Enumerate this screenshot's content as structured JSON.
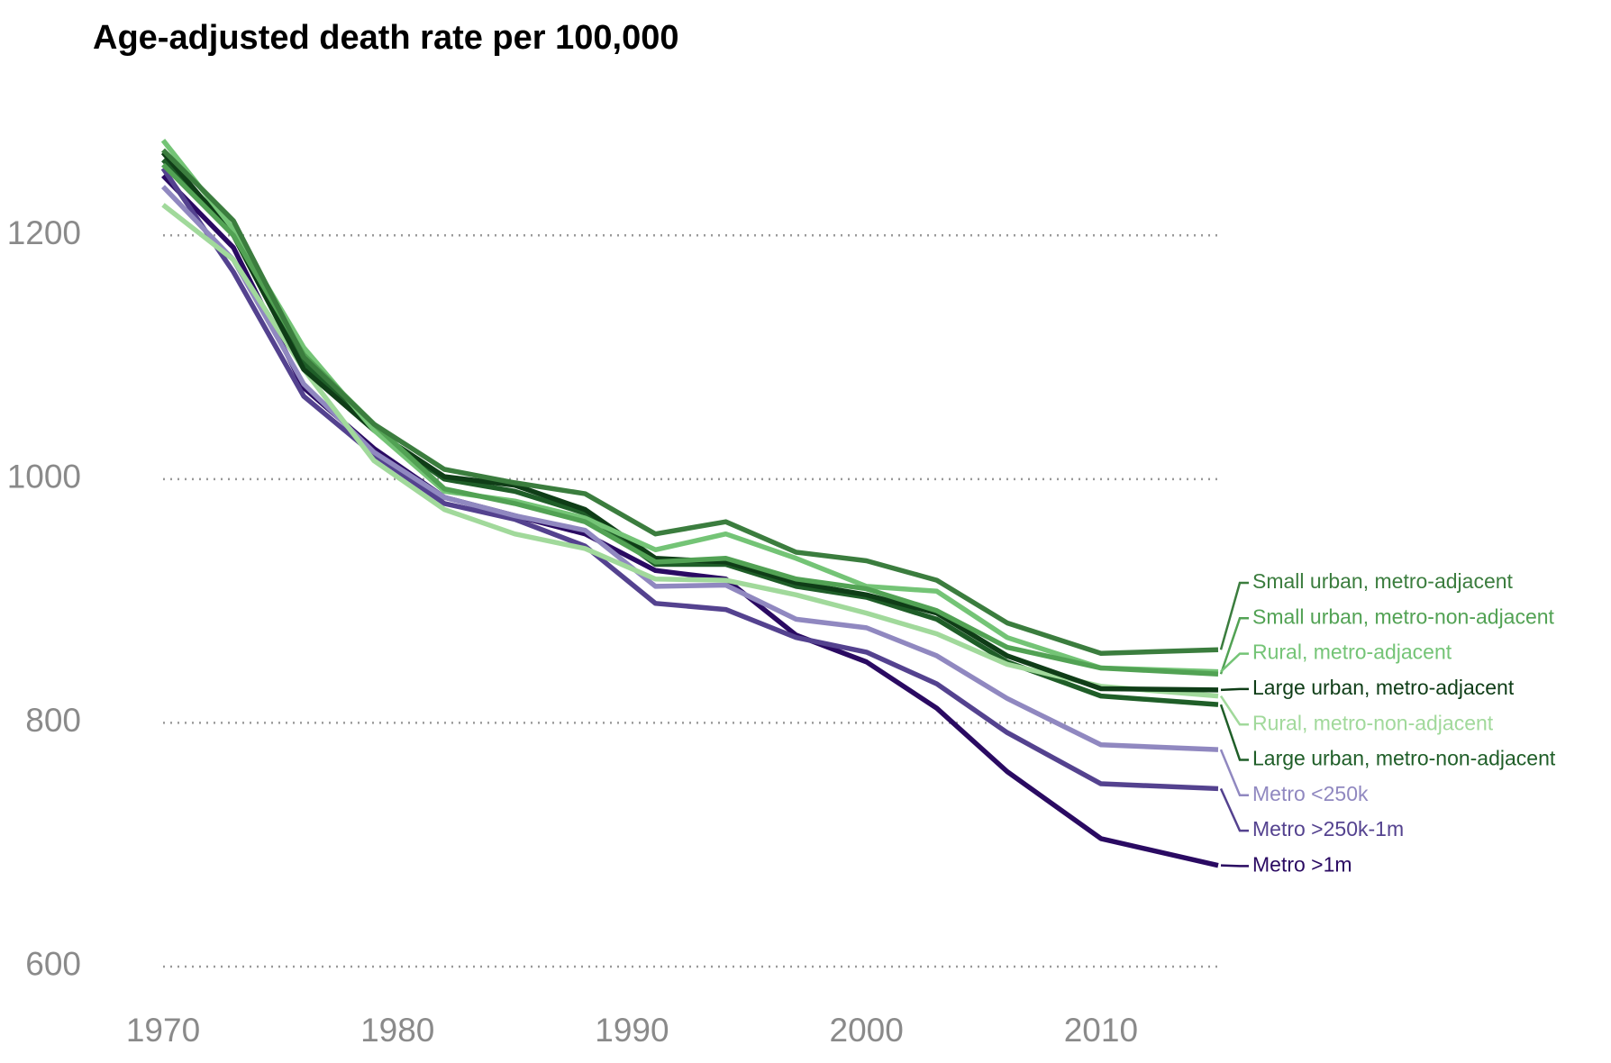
{
  "chart_data": {
    "type": "line",
    "title": "Age-adjusted death rate per 100,000",
    "x": [
      1970,
      1973,
      1976,
      1979,
      1982,
      1985,
      1988,
      1991,
      1994,
      1997,
      2000,
      2003,
      2006,
      2010,
      2015
    ],
    "xlim": [
      1970,
      2015
    ],
    "xticks": [
      1970,
      1980,
      1990,
      2000,
      2010
    ],
    "ylim": [
      580,
      1300
    ],
    "yticks": [
      600,
      800,
      1000,
      1200
    ],
    "grid": true,
    "series": [
      {
        "name": "Small urban, metro-adjacent",
        "color": "#3b7d3e",
        "values": [
          1270,
          1212,
          1100,
          1045,
          1008,
          997,
          988,
          955,
          965,
          940,
          933,
          917,
          882,
          857,
          860
        ]
      },
      {
        "name": "Small urban, metro-non-adjacent",
        "color": "#52a254",
        "values": [
          1258,
          1200,
          1102,
          1045,
          992,
          980,
          965,
          932,
          935,
          918,
          910,
          892,
          862,
          845,
          840
        ]
      },
      {
        "name": "Rural, metro-adjacent",
        "color": "#74c476",
        "values": [
          1278,
          1205,
          1108,
          1040,
          990,
          982,
          968,
          942,
          955,
          935,
          912,
          908,
          870,
          845,
          842
        ]
      },
      {
        "name": "Large urban, metro-adjacent",
        "color": "#0f3d17",
        "values": [
          1268,
          1200,
          1090,
          1040,
          1002,
          995,
          975,
          935,
          932,
          915,
          905,
          890,
          855,
          828,
          827
        ]
      },
      {
        "name": "Rural, metro-non-adjacent",
        "color": "#a1d99b",
        "values": [
          1225,
          1180,
          1090,
          1015,
          975,
          955,
          943,
          918,
          917,
          905,
          890,
          873,
          848,
          830,
          822
        ]
      },
      {
        "name": "Large urban, metro-non-adjacent",
        "color": "#1f5e28",
        "values": [
          1262,
          1205,
          1095,
          1040,
          1000,
          990,
          972,
          930,
          930,
          912,
          903,
          885,
          850,
          822,
          815
        ]
      },
      {
        "name": "Metro <250k",
        "color": "#9088c0",
        "values": [
          1240,
          1180,
          1078,
          1022,
          985,
          970,
          958,
          912,
          913,
          885,
          878,
          855,
          820,
          782,
          778
        ]
      },
      {
        "name": "Metro >250k-1m",
        "color": "#54428f",
        "values": [
          1255,
          1170,
          1068,
          1020,
          980,
          967,
          945,
          898,
          893,
          870,
          858,
          832,
          792,
          750,
          746
        ]
      },
      {
        "name": "Metro >1m",
        "color": "#2a0a62",
        "values": [
          1249,
          1190,
          1075,
          1025,
          985,
          970,
          955,
          925,
          918,
          872,
          850,
          812,
          760,
          705,
          683
        ]
      }
    ]
  }
}
